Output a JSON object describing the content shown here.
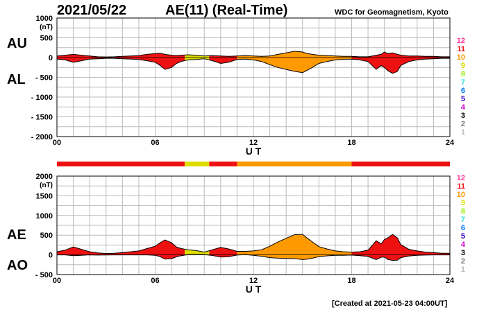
{
  "header": {
    "date": "2021/05/22",
    "title": "AE(11) (Real-Time)",
    "source": "WDC for Geomagnetism, Kyoto",
    "created": "[Created at 2021-05-23 04:00UT]"
  },
  "side_labels": {
    "au": "AU",
    "al": "AL",
    "ae": "AE",
    "ao": "AO"
  },
  "station_count_legend": [
    {
      "label": "12",
      "color": "#ff3399"
    },
    {
      "label": "11",
      "color": "#ee1111"
    },
    {
      "label": "10",
      "color": "#ff9900"
    },
    {
      "label": "9",
      "color": "#dddd00"
    },
    {
      "label": "8",
      "color": "#99ee00"
    },
    {
      "label": "7",
      "color": "#33dddd"
    },
    {
      "label": "6",
      "color": "#0077ff"
    },
    {
      "label": "5",
      "color": "#3300cc"
    },
    {
      "label": "4",
      "color": "#cc00cc"
    },
    {
      "label": "3",
      "color": "#000000"
    },
    {
      "label": "2",
      "color": "#777777"
    },
    {
      "label": "1",
      "color": "#bbbbbb"
    }
  ],
  "station_count_bar": [
    {
      "from": 0,
      "to": 7.8,
      "count": 11
    },
    {
      "from": 7.8,
      "to": 9.3,
      "count": 9
    },
    {
      "from": 9.3,
      "to": 11.0,
      "count": 11
    },
    {
      "from": 11.0,
      "to": 18.0,
      "count": 10
    },
    {
      "from": 18.0,
      "to": 24,
      "count": 11
    }
  ],
  "chart_data": [
    {
      "type": "area",
      "name": "upper-panel",
      "ylabel": "(nT)",
      "xlabel": "U T",
      "xlim": [
        0,
        24
      ],
      "ylim": [
        -2000,
        1000
      ],
      "xticks": [
        "00",
        "06",
        "12",
        "18",
        "24"
      ],
      "xtick_values": [
        0,
        6,
        12,
        18,
        24
      ],
      "yticks": [
        "1000",
        "500",
        "0",
        "- 500",
        "- 1000",
        "- 1500",
        "- 2000"
      ],
      "ytick_values": [
        1000,
        500,
        0,
        -500,
        -1000,
        -1500,
        -2000
      ],
      "grid": true,
      "x": [
        0,
        0.5,
        1,
        1.5,
        2,
        2.5,
        3,
        3.5,
        4,
        4.5,
        5,
        5.5,
        6,
        6.3,
        6.6,
        7,
        7.3,
        7.6,
        8,
        8.5,
        9,
        9.5,
        10,
        10.5,
        11,
        11.5,
        12,
        12.5,
        13,
        13.5,
        14,
        14.5,
        15,
        15.3,
        15.6,
        16,
        16.5,
        17,
        17.5,
        18,
        18.5,
        19,
        19.5,
        19.8,
        20,
        20.2,
        20.5,
        20.8,
        21,
        21.5,
        22,
        22.5,
        23,
        23.5,
        24
      ],
      "series": [
        {
          "key": "AU",
          "values": [
            40,
            60,
            80,
            60,
            40,
            20,
            15,
            20,
            30,
            40,
            50,
            80,
            100,
            110,
            80,
            60,
            50,
            60,
            70,
            60,
            40,
            50,
            40,
            30,
            40,
            50,
            40,
            30,
            40,
            80,
            120,
            160,
            140,
            100,
            80,
            60,
            50,
            40,
            30,
            30,
            20,
            20,
            60,
            80,
            140,
            100,
            120,
            80,
            60,
            40,
            40,
            30,
            30,
            20,
            20
          ]
        },
        {
          "key": "AL",
          "values": [
            -40,
            -60,
            -120,
            -80,
            -40,
            -30,
            -20,
            -20,
            -30,
            -40,
            -50,
            -80,
            -120,
            -200,
            -300,
            -250,
            -150,
            -100,
            -60,
            -50,
            -30,
            -80,
            -150,
            -120,
            -50,
            -40,
            -60,
            -100,
            -180,
            -250,
            -300,
            -350,
            -380,
            -320,
            -250,
            -150,
            -100,
            -60,
            -50,
            -40,
            -60,
            -100,
            -300,
            -200,
            -250,
            -330,
            -400,
            -350,
            -200,
            -100,
            -60,
            -40,
            -30,
            -20,
            -20
          ]
        }
      ]
    },
    {
      "type": "area",
      "name": "lower-panel",
      "ylabel": "(nT)",
      "xlabel": "U T",
      "xlim": [
        0,
        24
      ],
      "ylim": [
        -500,
        2000
      ],
      "xticks": [
        "00",
        "06",
        "12",
        "18",
        "24"
      ],
      "xtick_values": [
        0,
        6,
        12,
        18,
        24
      ],
      "yticks": [
        "2000",
        "1500",
        "1000",
        "500",
        "0",
        "- 500"
      ],
      "ytick_values": [
        2000,
        1500,
        1000,
        500,
        0,
        -500
      ],
      "grid": true,
      "x": [
        0,
        0.5,
        1,
        1.5,
        2,
        2.5,
        3,
        3.5,
        4,
        4.5,
        5,
        5.5,
        6,
        6.3,
        6.6,
        7,
        7.3,
        7.6,
        8,
        8.5,
        9,
        9.5,
        10,
        10.5,
        11,
        11.5,
        12,
        12.5,
        13,
        13.5,
        14,
        14.5,
        15,
        15.3,
        15.6,
        16,
        16.5,
        17,
        17.5,
        18,
        18.5,
        19,
        19.5,
        19.8,
        20,
        20.2,
        20.5,
        20.8,
        21,
        21.5,
        22,
        22.5,
        23,
        23.5,
        24
      ],
      "series": [
        {
          "key": "AE",
          "values": [
            80,
            120,
            200,
            140,
            80,
            50,
            35,
            40,
            60,
            80,
            100,
            160,
            220,
            310,
            380,
            310,
            200,
            160,
            130,
            110,
            70,
            130,
            190,
            150,
            90,
            90,
            100,
            130,
            220,
            330,
            420,
            510,
            520,
            420,
            330,
            210,
            150,
            100,
            80,
            70,
            80,
            120,
            360,
            280,
            390,
            430,
            520,
            430,
            260,
            140,
            100,
            70,
            60,
            40,
            40
          ]
        },
        {
          "key": "AO",
          "values": [
            0,
            0,
            -20,
            -10,
            0,
            -5,
            -3,
            0,
            0,
            0,
            0,
            0,
            -10,
            -45,
            -110,
            -95,
            -50,
            -20,
            5,
            5,
            5,
            -15,
            -55,
            -45,
            -5,
            5,
            -10,
            -35,
            -70,
            -85,
            -90,
            -95,
            -120,
            -110,
            -85,
            -45,
            -25,
            -10,
            -10,
            -5,
            -20,
            -40,
            -120,
            -60,
            -55,
            -115,
            -140,
            -135,
            -70,
            -30,
            -10,
            -5,
            0,
            0,
            0
          ]
        }
      ]
    }
  ]
}
